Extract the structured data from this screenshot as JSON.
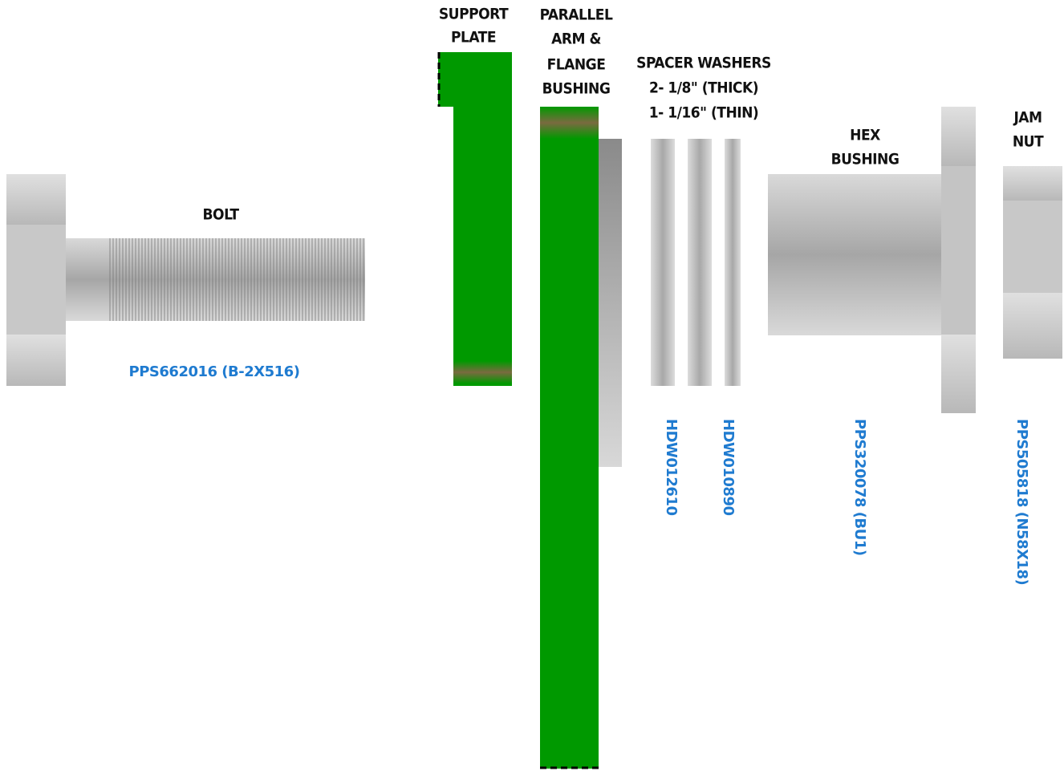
{
  "labels": {
    "bolt": [
      "BOLT"
    ],
    "support_plate": [
      "SUPPORT",
      "PLATE"
    ],
    "parallel_arm": [
      "PARALLEL",
      "ARM &",
      "FLANGE",
      "BUSHING"
    ],
    "spacer_washers": [
      "SPACER WASHERS",
      "2- 1/8\" (THICK)",
      "1- 1/16\" (THIN)"
    ],
    "hex_bushing": [
      "HEX",
      "BUSHING"
    ],
    "jam_nut": [
      "JAM",
      "NUT"
    ]
  },
  "part_numbers": {
    "bolt": "PPS662016 (B-2X516)",
    "washer_thick": "HDW012610",
    "washer_thin": "HDW010890",
    "hex_bushing": "PPS320078 (BU1)",
    "jam_nut": "PPS505818 (N58X18)"
  }
}
